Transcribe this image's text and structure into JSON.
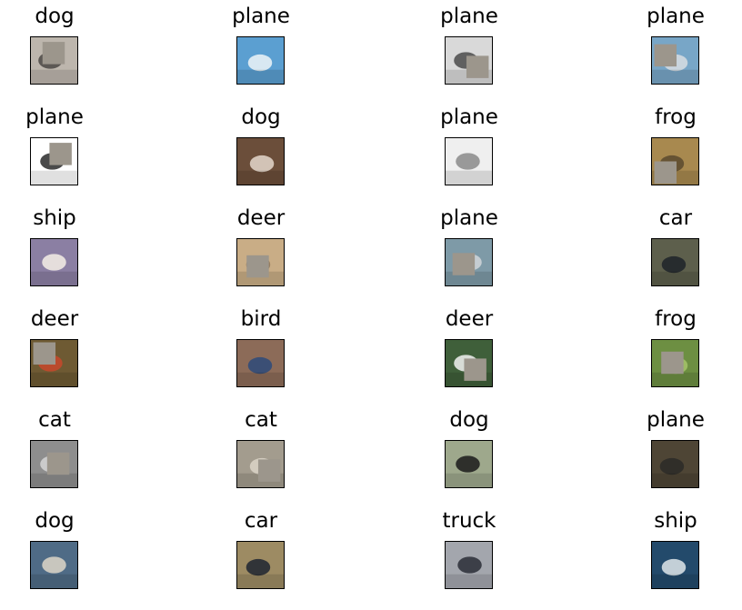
{
  "patch_color": "#9c968c",
  "images": [
    {
      "label": "dog",
      "bg": "#bdb6ad",
      "fg": "#4b4844",
      "patch": [
        0.25,
        0.1
      ]
    },
    {
      "label": "plane",
      "bg": "#5b9fd1",
      "fg": "#eef4f8",
      "patch": null
    },
    {
      "label": "plane",
      "bg": "#d9d9d9",
      "fg": "#4a4a4a",
      "patch": [
        0.45,
        0.4
      ]
    },
    {
      "label": "plane",
      "bg": "#78a6c7",
      "fg": "#d8dde2",
      "patch": [
        0.05,
        0.15
      ]
    },
    {
      "label": "plane",
      "bg": "#ffffff",
      "fg": "#2a2a2a",
      "patch": [
        0.4,
        0.1
      ]
    },
    {
      "label": "dog",
      "bg": "#6b4e3a",
      "fg": "#e4d8cc",
      "patch": null
    },
    {
      "label": "plane",
      "bg": "#efefef",
      "fg": "#8a8a8a",
      "patch": null
    },
    {
      "label": "frog",
      "bg": "#a8894f",
      "fg": "#5b4a2e",
      "patch": [
        0.05,
        0.5
      ]
    },
    {
      "label": "ship",
      "bg": "#8b7fa3",
      "fg": "#f4efe6",
      "patch": null
    },
    {
      "label": "deer",
      "bg": "#c9ad86",
      "fg": "#8c7458",
      "patch": [
        0.2,
        0.35
      ]
    },
    {
      "label": "plane",
      "bg": "#7e9aa7",
      "fg": "#d1d6d9",
      "patch": [
        0.15,
        0.3
      ]
    },
    {
      "label": "car",
      "bg": "#5d5f4c",
      "fg": "#1d2329",
      "patch": null
    },
    {
      "label": "deer",
      "bg": "#6e5a33",
      "fg": "#c8482c",
      "patch": [
        0.05,
        0.05
      ]
    },
    {
      "label": "bird",
      "bg": "#8c6b58",
      "fg": "#2d4a7a",
      "patch": null
    },
    {
      "label": "deer",
      "bg": "#3f5f3a",
      "fg": "#f2f2f2",
      "patch": [
        0.4,
        0.4
      ]
    },
    {
      "label": "frog",
      "bg": "#6d8f42",
      "fg": "#a6c46a",
      "patch": [
        0.2,
        0.25
      ]
    },
    {
      "label": "cat",
      "bg": "#8e8e8e",
      "fg": "#d6d6d6",
      "patch": [
        0.35,
        0.25
      ]
    },
    {
      "label": "cat",
      "bg": "#a39c8e",
      "fg": "#dcd5c8",
      "patch": [
        0.45,
        0.4
      ]
    },
    {
      "label": "dog",
      "bg": "#9ea88c",
      "fg": "#1a1a1a",
      "patch": null
    },
    {
      "label": "plane",
      "bg": "#4e4535",
      "fg": "#2b2a27",
      "patch": null
    },
    {
      "label": "dog",
      "bg": "#4f6b86",
      "fg": "#ddd6c8",
      "patch": null
    },
    {
      "label": "car",
      "bg": "#9d8b63",
      "fg": "#1f2430",
      "patch": null
    },
    {
      "label": "truck",
      "bg": "#a3a6ad",
      "fg": "#2a2d36",
      "patch": null
    },
    {
      "label": "ship",
      "bg": "#234a6b",
      "fg": "#dfe6ea",
      "patch": null
    }
  ]
}
